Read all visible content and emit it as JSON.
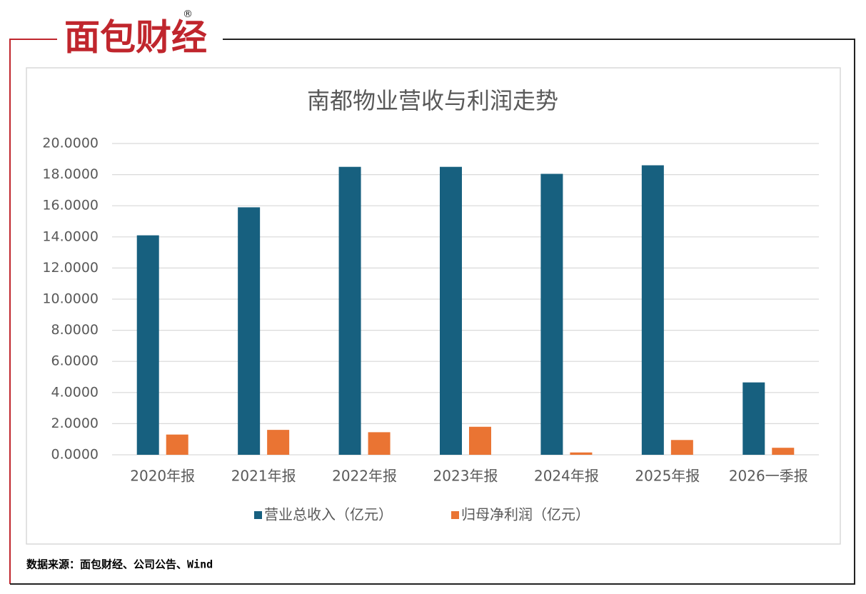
{
  "logo": {
    "text": "面包财经",
    "mark": "®"
  },
  "chart_data": {
    "type": "bar",
    "title": "南都物业营收与利润走势",
    "categories": [
      "2020年报",
      "2021年报",
      "2022年报",
      "2023年报",
      "2024年报",
      "2025年报",
      "2026一季报"
    ],
    "series": [
      {
        "name": "营业总收入（亿元）",
        "color": "#17607f",
        "values": [
          14.1,
          15.9,
          18.5,
          18.5,
          18.05,
          18.6,
          4.65
        ]
      },
      {
        "name": "归母净利润（亿元）",
        "color": "#ea7433",
        "values": [
          1.3,
          1.6,
          1.45,
          1.8,
          0.15,
          0.95,
          0.45
        ]
      }
    ],
    "ylim": [
      0,
      20
    ],
    "yticks": [
      {
        "value": 0,
        "label": "0.0000"
      },
      {
        "value": 2,
        "label": "2.0000"
      },
      {
        "value": 4,
        "label": "4.0000"
      },
      {
        "value": 6,
        "label": "6.0000"
      },
      {
        "value": 8,
        "label": "8.0000"
      },
      {
        "value": 10,
        "label": "10.0000"
      },
      {
        "value": 12,
        "label": "12.0000"
      },
      {
        "value": 14,
        "label": "14.0000"
      },
      {
        "value": 16,
        "label": "16.0000"
      },
      {
        "value": 18,
        "label": "18.0000"
      },
      {
        "value": 20,
        "label": "20.0000"
      }
    ],
    "grid": true,
    "legend": "bottom"
  },
  "source": "数据来源：面包财经、公司公告、Wind"
}
